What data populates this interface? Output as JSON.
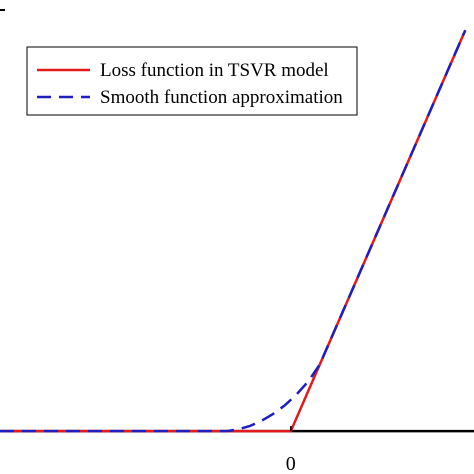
{
  "chart_data": {
    "type": "line",
    "title": "",
    "xlabel": "",
    "ylabel": "",
    "xlim": [
      -1,
      0.63
    ],
    "ylim": [
      -0.03,
      1.0
    ],
    "x_ticks": [
      {
        "value": 0,
        "label": "0"
      }
    ],
    "grid": false,
    "legend_position": "top-left",
    "series": [
      {
        "name": "Loss function in TSVR model",
        "color": "#e31a1c",
        "style": "solid",
        "points": [
          [
            -1.0,
            0.0
          ],
          [
            0.0,
            0.0
          ],
          [
            0.6,
            0.93
          ]
        ]
      },
      {
        "name": "Smooth function approximation",
        "color": "#1f1fbf",
        "style": "dashed",
        "points": [
          [
            -1.0,
            0.0
          ],
          [
            -0.22,
            0.0
          ],
          [
            -0.18,
            0.004
          ],
          [
            -0.14,
            0.012
          ],
          [
            -0.1,
            0.024
          ],
          [
            -0.06,
            0.04
          ],
          [
            -0.02,
            0.06
          ],
          [
            0.02,
            0.085
          ],
          [
            0.06,
            0.115
          ],
          [
            0.1,
            0.155
          ],
          [
            0.14,
            0.217
          ],
          [
            0.2,
            0.31
          ],
          [
            0.6,
            0.93
          ]
        ]
      }
    ]
  }
}
